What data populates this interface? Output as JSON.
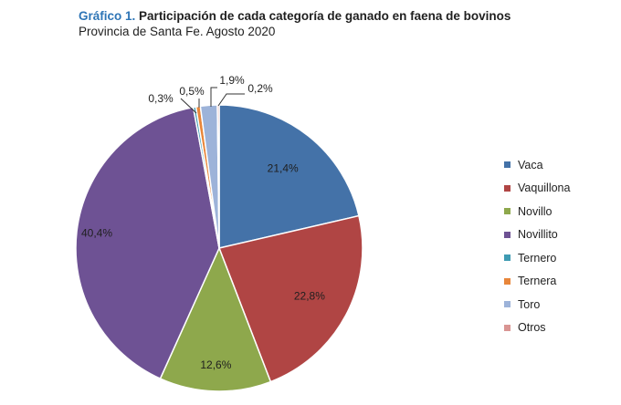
{
  "header": {
    "title_prefix": "Gráfico 1.",
    "title_text": "Participación de cada categoría de ganado en faena de bovinos",
    "subtitle": "Provincia de Santa Fe. Agosto 2020"
  },
  "chart_data": {
    "type": "pie",
    "title": "Gráfico 1. Participación de cada categoría de ganado en faena de bovinos",
    "subtitle": "Provincia de Santa Fe. Agosto 2020",
    "categories": [
      "Vaca",
      "Vaquillona",
      "Novillo",
      "Novillito",
      "Ternero",
      "Ternera",
      "Toro",
      "Otros"
    ],
    "values": [
      21.4,
      22.8,
      12.6,
      40.4,
      0.3,
      0.5,
      1.9,
      0.2
    ],
    "labels": [
      "21,4%",
      "22,8%",
      "12,6%",
      "40,4%",
      "0,3%",
      "0,5%",
      "1,9%",
      "0,2%"
    ],
    "colors": [
      "#4472a8",
      "#b04544",
      "#8ea84c",
      "#6e5294",
      "#3f9bb3",
      "#e8863a",
      "#9db3d9",
      "#d99593"
    ],
    "legend_position": "right",
    "start": "top",
    "direction": "clockwise"
  }
}
